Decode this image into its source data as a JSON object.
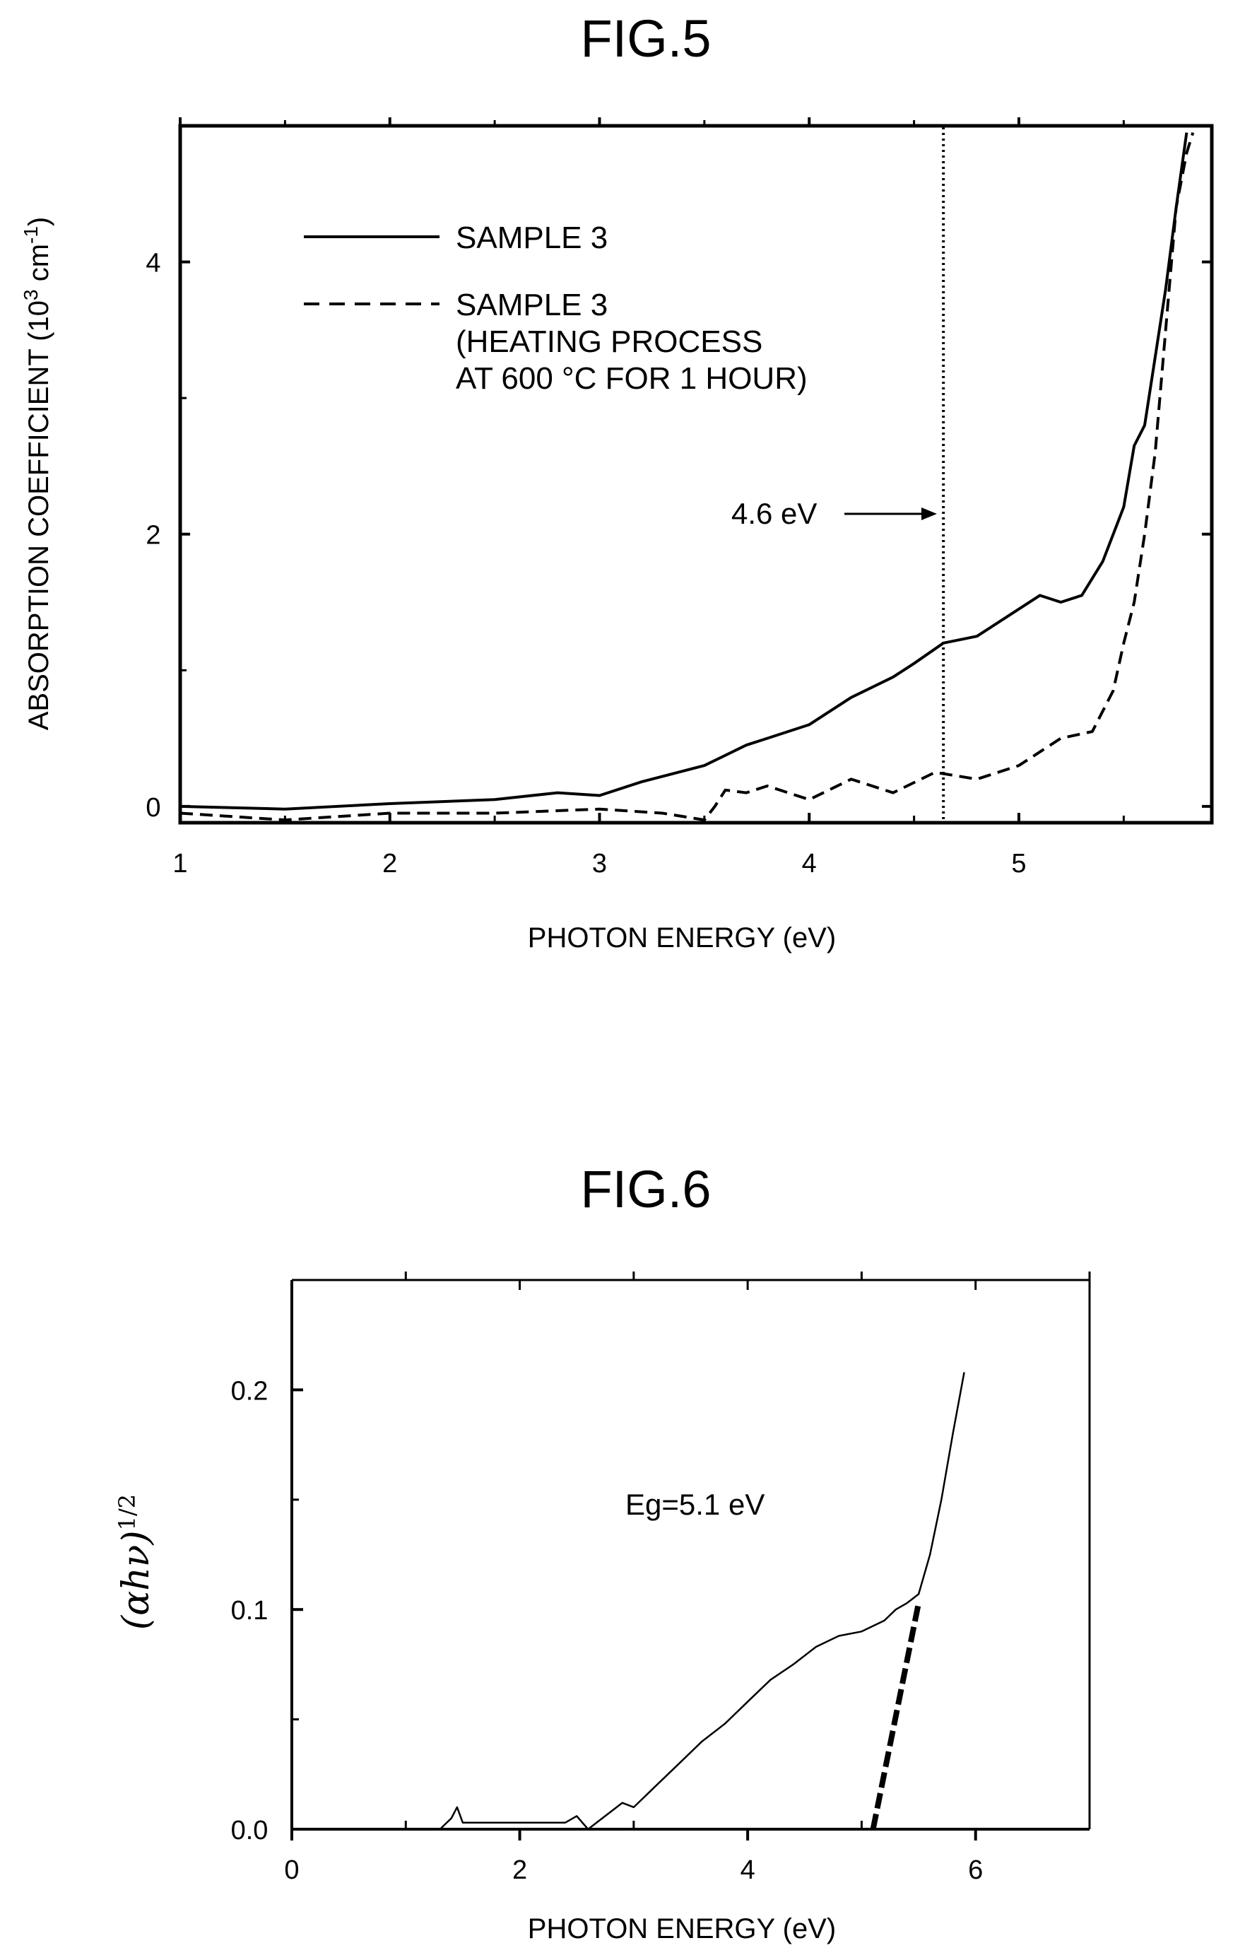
{
  "fig5": {
    "title": "FIG.5",
    "chart_data": {
      "type": "line",
      "title": "FIG.5",
      "xlabel": "PHOTON ENERGY (eV)",
      "ylabel_main": "ABSORPTION COEFFICIENT (10",
      "ylabel_sup1": "3",
      "ylabel_mid": " cm",
      "ylabel_sup2": "-1",
      "ylabel_end": ")",
      "xlim": [
        1,
        5.92
      ],
      "ylim": [
        -0.12,
        5.0
      ],
      "x_ticks": [
        "1",
        "2",
        "3",
        "4",
        "5"
      ],
      "y_ticks": [
        "0",
        "2",
        "4"
      ],
      "legend": {
        "solid": "SAMPLE 3",
        "dashed_line1": "SAMPLE 3",
        "dashed_line2": "(HEATING PROCESS",
        "dashed_line3": "AT 600 °C FOR 1 HOUR)"
      },
      "annotation": {
        "text": "4.6 eV",
        "x": 4.64
      },
      "series": [
        {
          "name": "SAMPLE 3",
          "style": "solid",
          "x": [
            1.0,
            1.5,
            2.0,
            2.5,
            2.8,
            3.0,
            3.2,
            3.5,
            3.7,
            3.8,
            4.0,
            4.2,
            4.4,
            4.5,
            4.64,
            4.8,
            5.0,
            5.1,
            5.2,
            5.3,
            5.4,
            5.5,
            5.55,
            5.6,
            5.7,
            5.75,
            5.8
          ],
          "y": [
            0.0,
            -0.02,
            0.02,
            0.05,
            0.1,
            0.08,
            0.18,
            0.3,
            0.45,
            0.5,
            0.6,
            0.8,
            0.95,
            1.05,
            1.2,
            1.25,
            1.45,
            1.55,
            1.5,
            1.55,
            1.8,
            2.2,
            2.65,
            2.8,
            3.8,
            4.4,
            4.95
          ]
        },
        {
          "name": "SAMPLE 3 (HEATING PROCESS AT 600 °C FOR 1 HOUR)",
          "style": "dashed",
          "x": [
            1.0,
            1.5,
            2.0,
            2.5,
            3.0,
            3.3,
            3.5,
            3.55,
            3.6,
            3.7,
            3.8,
            4.0,
            4.2,
            4.4,
            4.6,
            4.8,
            5.0,
            5.2,
            5.35,
            5.45,
            5.5,
            5.55,
            5.6,
            5.65,
            5.7,
            5.75,
            5.8,
            5.83
          ],
          "y": [
            -0.05,
            -0.1,
            -0.05,
            -0.05,
            -0.02,
            -0.05,
            -0.1,
            0.0,
            0.12,
            0.1,
            0.15,
            0.05,
            0.2,
            0.1,
            0.25,
            0.2,
            0.3,
            0.5,
            0.55,
            0.85,
            1.2,
            1.5,
            2.0,
            2.6,
            3.5,
            4.4,
            4.8,
            4.95
          ]
        }
      ]
    }
  },
  "fig6": {
    "title": "FIG.6",
    "chart_data": {
      "type": "line",
      "title": "FIG.6",
      "xlabel": "PHOTON ENERGY (eV)",
      "ylabel": "(αhν)",
      "ylabel_sup": "1/2",
      "xlim": [
        0,
        7
      ],
      "ylim": [
        0,
        0.25
      ],
      "x_ticks": [
        "0",
        "2",
        "4",
        "6"
      ],
      "y_ticks": [
        "0.0",
        "0.1",
        "0.2"
      ],
      "annotation": {
        "text": "Eg=5.1 eV"
      },
      "series": [
        {
          "style": "solid",
          "x": [
            1.3,
            1.4,
            1.45,
            1.5,
            2.4,
            2.5,
            2.6,
            2.8,
            2.9,
            3.0,
            3.1,
            3.2,
            3.4,
            3.6,
            3.8,
            4.0,
            4.2,
            4.4,
            4.6,
            4.8,
            5.0,
            5.2,
            5.3,
            5.4,
            5.5,
            5.6,
            5.7,
            5.8,
            5.9
          ],
          "y": [
            0.0,
            0.005,
            0.01,
            0.003,
            0.003,
            0.006,
            0.0,
            0.008,
            0.012,
            0.01,
            0.015,
            0.02,
            0.03,
            0.04,
            0.048,
            0.058,
            0.068,
            0.075,
            0.083,
            0.088,
            0.09,
            0.095,
            0.1,
            0.103,
            0.107,
            0.125,
            0.15,
            0.18,
            0.208
          ]
        },
        {
          "style": "extrapolation",
          "x": [
            5.1,
            5.5
          ],
          "y": [
            0.0,
            0.103
          ]
        }
      ]
    }
  }
}
